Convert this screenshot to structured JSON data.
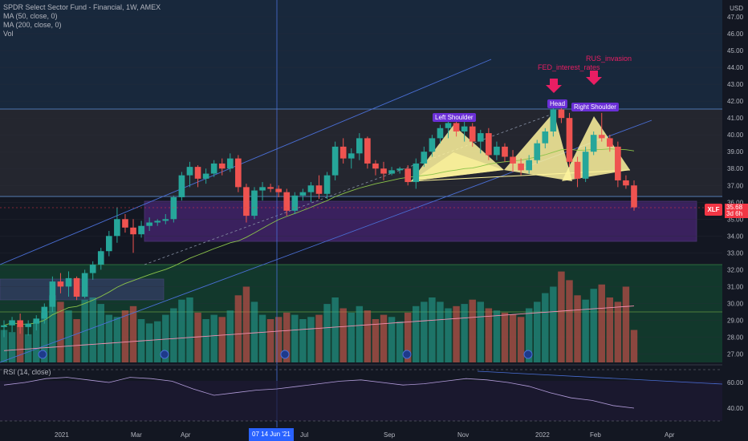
{
  "header": {
    "title": "SPDR Select Sector Fund - Financial, 1W, AMEX",
    "indicators": [
      "MA (50, close, 0)",
      "MA (200, close, 0)",
      "Vol"
    ],
    "currency": "USD"
  },
  "rsi": {
    "label": "RSI (14, close)",
    "ticks": [
      "60.00",
      "40.00"
    ],
    "values": [
      58,
      60,
      63,
      64,
      62,
      60,
      64,
      63,
      61,
      55,
      50,
      52,
      54,
      55,
      57,
      59,
      61,
      62,
      60,
      58,
      59,
      61,
      63,
      62,
      60,
      57,
      52,
      48,
      46,
      42,
      40
    ]
  },
  "price": {
    "ticker": "XLF",
    "last": "35.68",
    "countdown": "3d 6h"
  },
  "annotations": {
    "left_shoulder": "Left Shoulder",
    "head": "Head",
    "right_shoulder": "Right Shoulder",
    "fed": "FED_interest_rates",
    "rus": "RUS_invasion"
  },
  "crosshair_date": "14 Jun '21",
  "crosshair_prefix": "07",
  "colors": {
    "up": "#26a69a",
    "down": "#ef5350",
    "ma50": "#8bc34a",
    "ma200": "#f48fb1",
    "accent": "#2962ff"
  },
  "chart_data": {
    "type": "candlestick",
    "title": "SPDR Select Sector Fund - Financial, 1W, AMEX",
    "ylim": [
      26.5,
      48
    ],
    "yticks": [
      "27.00",
      "28.00",
      "29.00",
      "30.00",
      "31.00",
      "32.00",
      "33.00",
      "34.00",
      "35.00",
      "36.00",
      "37.00",
      "38.00",
      "39.00",
      "40.00",
      "41.00",
      "42.00",
      "43.00",
      "44.00",
      "45.00",
      "46.00",
      "47.00"
    ],
    "x_tick_labels": [
      "2021",
      "Mar",
      "Apr",
      "Jul",
      "Sep",
      "Nov",
      "2022",
      "Feb",
      "Apr"
    ],
    "series": [
      {
        "name": "OHLC",
        "values": [
          {
            "o": 28.6,
            "h": 29.0,
            "l": 28.0,
            "c": 28.7
          },
          {
            "o": 28.7,
            "h": 29.2,
            "l": 28.3,
            "c": 29.0
          },
          {
            "o": 29.0,
            "h": 29.4,
            "l": 28.2,
            "c": 28.6
          },
          {
            "o": 28.6,
            "h": 29.0,
            "l": 28.1,
            "c": 28.8
          },
          {
            "o": 28.8,
            "h": 29.3,
            "l": 28.4,
            "c": 29.1
          },
          {
            "o": 29.1,
            "h": 30.0,
            "l": 28.8,
            "c": 29.8
          },
          {
            "o": 29.8,
            "h": 31.6,
            "l": 29.5,
            "c": 31.3
          },
          {
            "o": 31.3,
            "h": 31.8,
            "l": 30.6,
            "c": 31.0
          },
          {
            "o": 31.0,
            "h": 31.9,
            "l": 30.4,
            "c": 31.5
          },
          {
            "o": 31.5,
            "h": 31.6,
            "l": 30.2,
            "c": 30.4
          },
          {
            "o": 30.4,
            "h": 32.0,
            "l": 30.3,
            "c": 31.8
          },
          {
            "o": 31.8,
            "h": 32.5,
            "l": 31.4,
            "c": 32.3
          },
          {
            "o": 32.3,
            "h": 33.3,
            "l": 32.0,
            "c": 33.1
          },
          {
            "o": 33.1,
            "h": 34.3,
            "l": 32.8,
            "c": 34.0
          },
          {
            "o": 34.0,
            "h": 35.7,
            "l": 33.6,
            "c": 35.0
          },
          {
            "o": 35.0,
            "h": 35.3,
            "l": 34.2,
            "c": 34.5
          },
          {
            "o": 34.5,
            "h": 35.0,
            "l": 33.0,
            "c": 34.1
          },
          {
            "o": 34.1,
            "h": 34.9,
            "l": 33.9,
            "c": 34.6
          },
          {
            "o": 34.6,
            "h": 35.1,
            "l": 34.3,
            "c": 34.8
          },
          {
            "o": 34.8,
            "h": 35.0,
            "l": 34.6,
            "c": 34.9
          },
          {
            "o": 34.9,
            "h": 35.3,
            "l": 34.7,
            "c": 35.0
          },
          {
            "o": 35.0,
            "h": 36.4,
            "l": 34.8,
            "c": 36.3
          },
          {
            "o": 36.3,
            "h": 37.8,
            "l": 36.1,
            "c": 37.6
          },
          {
            "o": 37.6,
            "h": 38.4,
            "l": 36.9,
            "c": 38.1
          },
          {
            "o": 38.1,
            "h": 38.2,
            "l": 36.9,
            "c": 37.4
          },
          {
            "o": 37.4,
            "h": 38.0,
            "l": 37.1,
            "c": 37.7
          },
          {
            "o": 37.7,
            "h": 38.5,
            "l": 37.5,
            "c": 38.3
          },
          {
            "o": 38.3,
            "h": 38.6,
            "l": 37.6,
            "c": 38.0
          },
          {
            "o": 38.0,
            "h": 38.9,
            "l": 37.8,
            "c": 38.6
          },
          {
            "o": 38.6,
            "h": 38.8,
            "l": 36.6,
            "c": 36.9
          },
          {
            "o": 36.9,
            "h": 37.1,
            "l": 34.8,
            "c": 35.2
          },
          {
            "o": 35.2,
            "h": 36.9,
            "l": 35.0,
            "c": 36.7
          },
          {
            "o": 36.7,
            "h": 37.2,
            "l": 36.1,
            "c": 36.9
          },
          {
            "o": 36.9,
            "h": 37.1,
            "l": 36.6,
            "c": 36.8
          },
          {
            "o": 36.8,
            "h": 37.0,
            "l": 36.3,
            "c": 36.6
          },
          {
            "o": 36.6,
            "h": 36.8,
            "l": 35.2,
            "c": 35.5
          },
          {
            "o": 35.5,
            "h": 36.6,
            "l": 35.3,
            "c": 36.4
          },
          {
            "o": 36.4,
            "h": 36.8,
            "l": 36.1,
            "c": 36.6
          },
          {
            "o": 36.6,
            "h": 37.2,
            "l": 36.0,
            "c": 37.0
          },
          {
            "o": 37.0,
            "h": 37.6,
            "l": 36.2,
            "c": 36.5
          },
          {
            "o": 36.5,
            "h": 37.8,
            "l": 36.2,
            "c": 37.6
          },
          {
            "o": 37.6,
            "h": 39.6,
            "l": 37.3,
            "c": 39.3
          },
          {
            "o": 39.3,
            "h": 39.8,
            "l": 38.3,
            "c": 38.6
          },
          {
            "o": 38.6,
            "h": 39.2,
            "l": 38.0,
            "c": 38.9
          },
          {
            "o": 38.9,
            "h": 40.1,
            "l": 38.5,
            "c": 39.8
          },
          {
            "o": 39.8,
            "h": 39.9,
            "l": 38.0,
            "c": 38.3
          },
          {
            "o": 38.3,
            "h": 38.5,
            "l": 37.6,
            "c": 38.0
          },
          {
            "o": 38.0,
            "h": 38.4,
            "l": 37.3,
            "c": 37.7
          },
          {
            "o": 37.7,
            "h": 38.1,
            "l": 37.6,
            "c": 37.9
          },
          {
            "o": 37.9,
            "h": 38.1,
            "l": 37.7,
            "c": 38.0
          },
          {
            "o": 38.0,
            "h": 38.2,
            "l": 37.0,
            "c": 37.2
          },
          {
            "o": 37.2,
            "h": 38.6,
            "l": 36.8,
            "c": 38.3
          },
          {
            "o": 38.3,
            "h": 39.3,
            "l": 38.1,
            "c": 39.0
          },
          {
            "o": 39.0,
            "h": 40.0,
            "l": 38.7,
            "c": 39.8
          },
          {
            "o": 39.8,
            "h": 40.6,
            "l": 39.5,
            "c": 40.4
          },
          {
            "o": 40.4,
            "h": 40.9,
            "l": 39.8,
            "c": 40.7
          },
          {
            "o": 40.7,
            "h": 40.9,
            "l": 39.9,
            "c": 40.2
          },
          {
            "o": 40.2,
            "h": 40.8,
            "l": 39.6,
            "c": 40.5
          },
          {
            "o": 40.5,
            "h": 40.7,
            "l": 39.3,
            "c": 39.6
          },
          {
            "o": 39.6,
            "h": 40.3,
            "l": 38.9,
            "c": 40.1
          },
          {
            "o": 40.1,
            "h": 40.4,
            "l": 38.5,
            "c": 38.8
          },
          {
            "o": 38.8,
            "h": 39.6,
            "l": 38.5,
            "c": 39.3
          },
          {
            "o": 39.3,
            "h": 39.5,
            "l": 38.4,
            "c": 38.7
          },
          {
            "o": 38.7,
            "h": 39.1,
            "l": 37.8,
            "c": 38.3
          },
          {
            "o": 38.3,
            "h": 38.6,
            "l": 37.6,
            "c": 37.9
          },
          {
            "o": 37.9,
            "h": 38.8,
            "l": 37.7,
            "c": 38.5
          },
          {
            "o": 38.5,
            "h": 39.7,
            "l": 38.3,
            "c": 39.5
          },
          {
            "o": 39.5,
            "h": 40.4,
            "l": 39.2,
            "c": 40.2
          },
          {
            "o": 40.2,
            "h": 41.7,
            "l": 39.9,
            "c": 41.5
          },
          {
            "o": 41.5,
            "h": 41.7,
            "l": 40.7,
            "c": 41.0
          },
          {
            "o": 41.0,
            "h": 41.3,
            "l": 38.1,
            "c": 38.4
          },
          {
            "o": 38.4,
            "h": 38.7,
            "l": 36.9,
            "c": 37.4
          },
          {
            "o": 37.4,
            "h": 39.3,
            "l": 37.2,
            "c": 39.0
          },
          {
            "o": 39.0,
            "h": 40.2,
            "l": 38.8,
            "c": 40.0
          },
          {
            "o": 40.0,
            "h": 41.3,
            "l": 39.6,
            "c": 39.8
          },
          {
            "o": 39.8,
            "h": 40.0,
            "l": 39.0,
            "c": 39.3
          },
          {
            "o": 39.3,
            "h": 39.6,
            "l": 36.9,
            "c": 37.3
          },
          {
            "o": 37.3,
            "h": 37.6,
            "l": 36.8,
            "c": 37.0
          },
          {
            "o": 37.0,
            "h": 37.3,
            "l": 35.5,
            "c": 35.7
          }
        ]
      }
    ]
  }
}
